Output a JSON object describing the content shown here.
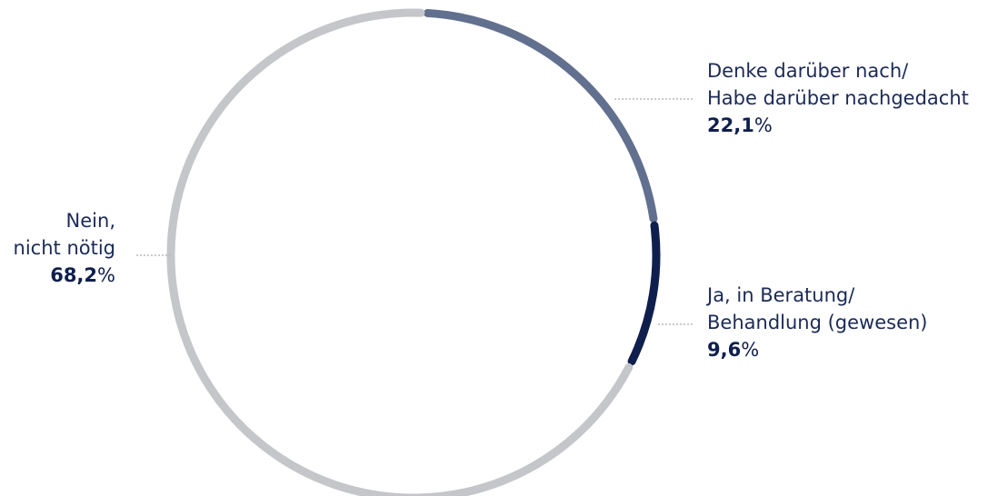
{
  "chart_data": {
    "type": "pie",
    "style": "donut-ring",
    "unit": "%",
    "slices": [
      {
        "label_lines": [
          "Denke darüber nach/",
          "Habe darüber nachgedacht"
        ],
        "value": 22.1,
        "value_text": "22,1",
        "color": "#62708f"
      },
      {
        "label_lines": [
          "Ja, in Beratung/",
          "Behandlung (gewesen)"
        ],
        "value": 9.6,
        "value_text": "9,6",
        "color": "#0f1f4d"
      },
      {
        "label_lines": [
          "Nein,",
          "nicht nötig"
        ],
        "value": 68.2,
        "value_text": "68,2",
        "color": "#c5c6ca"
      }
    ],
    "leader_color": "#b9babd"
  }
}
